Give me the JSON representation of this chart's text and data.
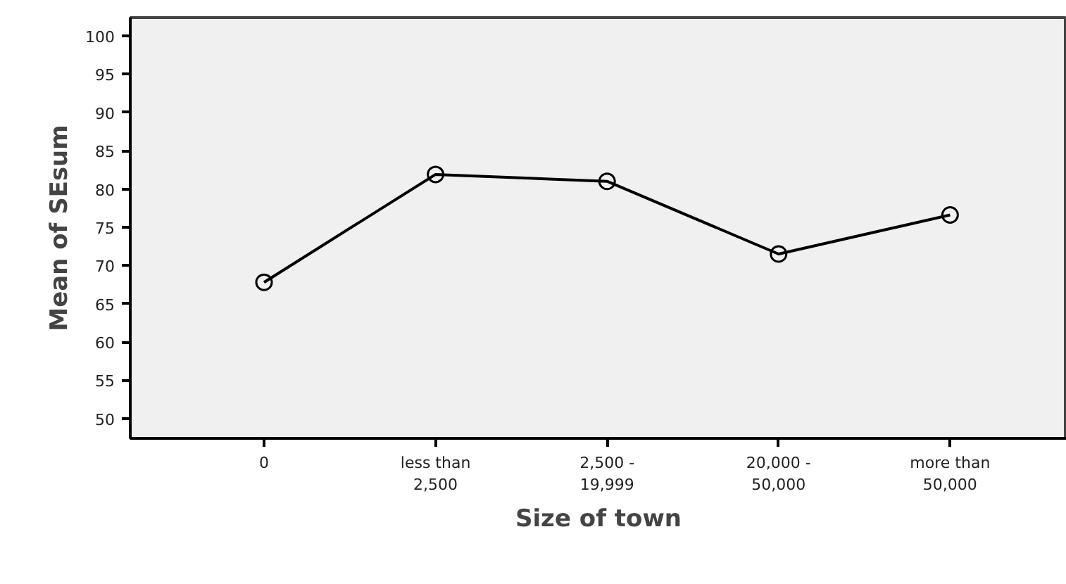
{
  "chart_data": {
    "type": "line",
    "xlabel": "Size of town",
    "ylabel": "Mean of SEsum",
    "categories": [
      "0",
      "less than\n2,500",
      "2,500 -\n19,999",
      "20,000 -\n50,000",
      "more than\n50,000"
    ],
    "series": [
      {
        "color": "#000000",
        "values": [
          67.8,
          81.9,
          81.0,
          71.5,
          76.6
        ]
      }
    ],
    "ylim": [
      47.4,
      102.4
    ],
    "yticks": [
      50,
      55,
      60,
      65,
      70,
      75,
      80,
      85,
      90,
      95,
      100
    ],
    "marker": "circle",
    "line_style": "solid",
    "grid": false
  }
}
